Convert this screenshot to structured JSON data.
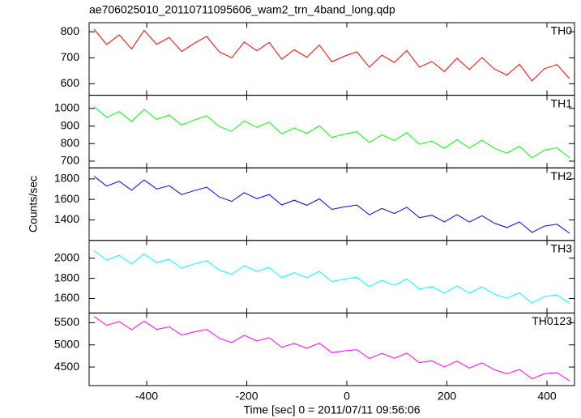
{
  "chart_data": [
    {
      "type": "line",
      "title": "ae706025010_20110711095606_wam2_trn_4band_long.qdp",
      "x": [
        -505,
        -480,
        -455,
        -430,
        -405,
        -380,
        -355,
        -330,
        -305,
        -280,
        -255,
        -230,
        -205,
        -180,
        -155,
        -130,
        -105,
        -80,
        -55,
        -30,
        -5,
        20,
        45,
        70,
        95,
        120,
        145,
        170,
        195,
        220,
        245,
        270,
        295,
        320,
        345,
        370,
        395,
        420,
        445
      ],
      "series": [
        {
          "name": "TH0",
          "color": "#ff0000",
          "values": [
            810,
            751,
            788,
            734,
            805,
            752,
            778,
            724,
            756,
            782,
            723,
            700,
            761,
            727,
            759,
            695,
            731,
            702,
            749,
            685,
            706,
            723,
            664,
            710,
            682,
            728,
            664,
            686,
            647,
            698,
            655,
            701,
            657,
            634,
            675,
            611,
            658,
            674,
            620
          ]
        }
      ],
      "xlim": [
        -515,
        455
      ],
      "xticks": [
        -400,
        -200,
        0,
        200,
        400
      ],
      "ylim": [
        556,
        835
      ],
      "yticks": [
        600,
        700,
        800
      ]
    },
    {
      "type": "line",
      "x": [
        -505,
        -480,
        -455,
        -430,
        -405,
        -380,
        -355,
        -330,
        -305,
        -280,
        -255,
        -230,
        -205,
        -180,
        -155,
        -130,
        -105,
        -80,
        -55,
        -30,
        -5,
        20,
        45,
        70,
        95,
        120,
        145,
        170,
        195,
        220,
        245,
        270,
        295,
        320,
        345,
        370,
        395,
        420,
        445
      ],
      "series": [
        {
          "name": "TH1",
          "color": "#00ff00",
          "values": [
            1010,
            949,
            982,
            926,
            995,
            938,
            962,
            906,
            934,
            958,
            897,
            870,
            929,
            893,
            922,
            855,
            889,
            858,
            901,
            835,
            854,
            867,
            806,
            850,
            818,
            862,
            796,
            814,
            773,
            822,
            775,
            819,
            773,
            746,
            785,
            719,
            763,
            776,
            720
          ]
        }
      ],
      "xlim": [
        -515,
        455
      ],
      "xticks": [
        -400,
        -200,
        0,
        200,
        400
      ],
      "ylim": [
        662,
        1075
      ],
      "yticks": [
        700,
        800,
        900,
        1000
      ]
    },
    {
      "type": "line",
      "ylabel": "Counts/sec",
      "x": [
        -505,
        -480,
        -455,
        -430,
        -405,
        -380,
        -355,
        -330,
        -305,
        -280,
        -255,
        -230,
        -205,
        -180,
        -155,
        -130,
        -105,
        -80,
        -55,
        -30,
        -5,
        20,
        45,
        70,
        95,
        120,
        145,
        170,
        195,
        220,
        245,
        270,
        295,
        320,
        345,
        370,
        395,
        420,
        445
      ],
      "series": [
        {
          "name": "TH2",
          "color": "#0000ff",
          "values": [
            1825,
            1730,
            1777,
            1690,
            1790,
            1702,
            1734,
            1647,
            1686,
            1719,
            1624,
            1581,
            1666,
            1608,
            1648,
            1546,
            1593,
            1543,
            1605,
            1503,
            1527,
            1545,
            1450,
            1512,
            1462,
            1524,
            1422,
            1446,
            1381,
            1451,
            1379,
            1441,
            1368,
            1326,
            1381,
            1278,
            1340,
            1358,
            1270
          ]
        }
      ],
      "xlim": [
        -515,
        455
      ],
      "xticks": [
        -400,
        -200,
        0,
        200,
        400
      ],
      "ylim": [
        1200,
        1908
      ],
      "yticks": [
        1400,
        1600,
        1800
      ]
    },
    {
      "type": "line",
      "x": [
        -505,
        -480,
        -455,
        -430,
        -405,
        -380,
        -355,
        -330,
        -305,
        -280,
        -255,
        -230,
        -205,
        -180,
        -155,
        -130,
        -105,
        -80,
        -55,
        -30,
        -5,
        20,
        45,
        70,
        95,
        120,
        145,
        170,
        195,
        220,
        245,
        270,
        295,
        320,
        345,
        370,
        395,
        420,
        445
      ],
      "series": [
        {
          "name": "TH3",
          "color": "#00ffff",
          "values": [
            2075,
            1981,
            2029,
            1942,
            2043,
            1956,
            1989,
            1902,
            1943,
            1976,
            1882,
            1840,
            1925,
            1869,
            1909,
            1807,
            1856,
            1806,
            1869,
            1768,
            1793,
            1811,
            1717,
            1780,
            1731,
            1794,
            1692,
            1718,
            1653,
            1724,
            1652,
            1715,
            1644,
            1602,
            1657,
            1556,
            1619,
            1637,
            1550
          ]
        }
      ],
      "xlim": [
        -515,
        455
      ],
      "xticks": [
        -400,
        -200,
        0,
        200,
        400
      ],
      "ylim": [
        1456,
        2176
      ],
      "yticks": [
        1600,
        1800,
        2000
      ]
    },
    {
      "type": "line",
      "xlabel": "Time [sec] 0 = 2011/07/11 09:56:06",
      "x": [
        -505,
        -480,
        -455,
        -430,
        -405,
        -380,
        -355,
        -330,
        -305,
        -280,
        -255,
        -230,
        -205,
        -180,
        -155,
        -130,
        -105,
        -80,
        -55,
        -30,
        -5,
        20,
        45,
        70,
        95,
        120,
        145,
        170,
        195,
        220,
        245,
        270,
        295,
        320,
        345,
        370,
        395,
        420,
        445
      ],
      "series": [
        {
          "name": "TH0123",
          "color": "#ff00ff",
          "values": [
            5640,
            5441,
            5527,
            5342,
            5533,
            5349,
            5405,
            5221,
            5291,
            5347,
            5148,
            5054,
            5215,
            5090,
            5161,
            4947,
            5033,
            4923,
            5039,
            4825,
            4866,
            4892,
            4692,
            4808,
            4699,
            4815,
            4601,
            4641,
            4502,
            4633,
            4479,
            4595,
            4440,
            4346,
            4447,
            4233,
            4348,
            4374,
            4190
          ]
        }
      ],
      "xlim": [
        -515,
        455
      ],
      "xticks": [
        -400,
        -200,
        0,
        200,
        400
      ],
      "ylim": [
        4082,
        5718
      ],
      "yticks": [
        4500,
        5000,
        5500
      ]
    }
  ]
}
